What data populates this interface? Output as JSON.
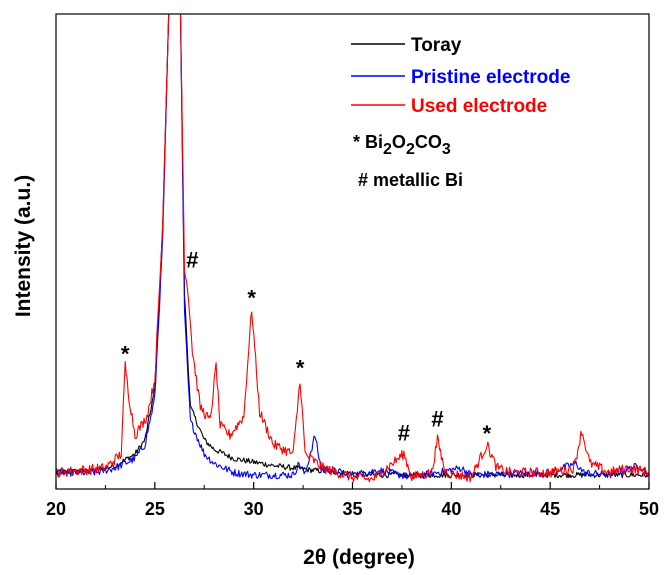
{
  "chart_data": {
    "type": "line",
    "xlabel": "2θ (degree)",
    "ylabel": "Intensity (a.u.)",
    "xlim": [
      20,
      50
    ],
    "ylim": [
      -1.5,
      100
    ],
    "x_ticks": [
      "20",
      "25",
      "30",
      "35",
      "40",
      "45",
      "50"
    ],
    "y_ticks_shown": false,
    "legend_position": "top-right",
    "series": [
      {
        "name": "Toray",
        "color": "#000000",
        "points": [
          [
            20,
            2
          ],
          [
            22,
            2.5
          ],
          [
            23,
            3.5
          ],
          [
            24,
            6
          ],
          [
            24.5,
            9
          ],
          [
            25,
            20
          ],
          [
            25.4,
            55
          ],
          [
            25.7,
            100
          ],
          [
            26.3,
            100
          ],
          [
            26.5,
            40
          ],
          [
            26.8,
            16
          ],
          [
            27.5,
            9
          ],
          [
            28,
            7
          ],
          [
            29,
            5
          ],
          [
            31,
            3.5
          ],
          [
            33,
            2.5
          ],
          [
            36,
            1.5
          ],
          [
            40,
            1.5
          ],
          [
            45,
            1.5
          ],
          [
            50,
            1.5
          ]
        ]
      },
      {
        "name": "Pristine electrode",
        "color": "#0000ff",
        "points": [
          [
            20,
            2
          ],
          [
            22,
            2
          ],
          [
            23,
            3
          ],
          [
            24,
            5
          ],
          [
            24.5,
            8
          ],
          [
            25,
            18
          ],
          [
            25.4,
            52
          ],
          [
            25.7,
            100
          ],
          [
            26.3,
            100
          ],
          [
            26.5,
            36
          ],
          [
            26.8,
            13
          ],
          [
            27.5,
            6
          ],
          [
            28,
            4
          ],
          [
            29,
            2
          ],
          [
            30,
            1.5
          ],
          [
            32,
            1.5
          ],
          [
            32.3,
            4
          ],
          [
            32.6,
            1.5
          ],
          [
            33.1,
            10
          ],
          [
            33.4,
            3
          ],
          [
            35,
            1.5
          ],
          [
            36.3,
            2.5
          ],
          [
            38,
            1
          ],
          [
            40.5,
            3
          ],
          [
            41,
            1.5
          ],
          [
            45,
            2
          ],
          [
            46.3,
            4
          ],
          [
            46.7,
            2
          ],
          [
            48,
            1.5
          ],
          [
            49.5,
            3.5
          ],
          [
            50,
            1.5
          ]
        ]
      },
      {
        "name": "Used electrode",
        "color": "#ff0000",
        "points": [
          [
            20,
            2
          ],
          [
            22.5,
            3
          ],
          [
            23.3,
            6
          ],
          [
            23.5,
            25
          ],
          [
            23.7,
            18
          ],
          [
            24,
            10
          ],
          [
            24.6,
            14
          ],
          [
            25,
            22
          ],
          [
            25.4,
            55
          ],
          [
            25.7,
            100
          ],
          [
            26.3,
            100
          ],
          [
            26.5,
            46
          ],
          [
            26.7,
            40
          ],
          [
            26.9,
            28
          ],
          [
            27.3,
            16
          ],
          [
            27.8,
            13
          ],
          [
            28.1,
            25
          ],
          [
            28.3,
            12
          ],
          [
            28.8,
            10
          ],
          [
            29.5,
            14
          ],
          [
            29.9,
            37
          ],
          [
            30.3,
            15
          ],
          [
            31,
            8
          ],
          [
            32,
            6
          ],
          [
            32.35,
            22
          ],
          [
            32.6,
            6
          ],
          [
            33.5,
            3
          ],
          [
            35,
            1
          ],
          [
            36,
            0.5
          ],
          [
            37.6,
            6
          ],
          [
            38,
            1
          ],
          [
            39,
            2
          ],
          [
            39.3,
            9
          ],
          [
            39.7,
            2
          ],
          [
            41,
            1
          ],
          [
            41.8,
            8
          ],
          [
            42.3,
            3
          ],
          [
            43,
            2
          ],
          [
            45,
            2
          ],
          [
            46.2,
            3
          ],
          [
            46.6,
            11
          ],
          [
            47,
            4
          ],
          [
            48,
            2
          ],
          [
            49,
            3
          ],
          [
            50,
            2
          ]
        ]
      }
    ],
    "legend": {
      "entries": [
        "Toray",
        "Pristine electrode",
        "Used electrode"
      ],
      "note_star": "* Bi2O2CO3",
      "note_hash": "# metallic Bi"
    },
    "annotations": [
      {
        "text": "*",
        "x": 23.5,
        "y": 27
      },
      {
        "text": "#",
        "x": 26.9,
        "y": 45
      },
      {
        "text": "*",
        "x": 29.9,
        "y": 39
      },
      {
        "text": "*",
        "x": 32.35,
        "y": 24
      },
      {
        "text": "#",
        "x": 37.6,
        "y": 8
      },
      {
        "text": "#",
        "x": 39.3,
        "y": 11
      },
      {
        "text": "*",
        "x": 41.8,
        "y": 10
      }
    ]
  }
}
